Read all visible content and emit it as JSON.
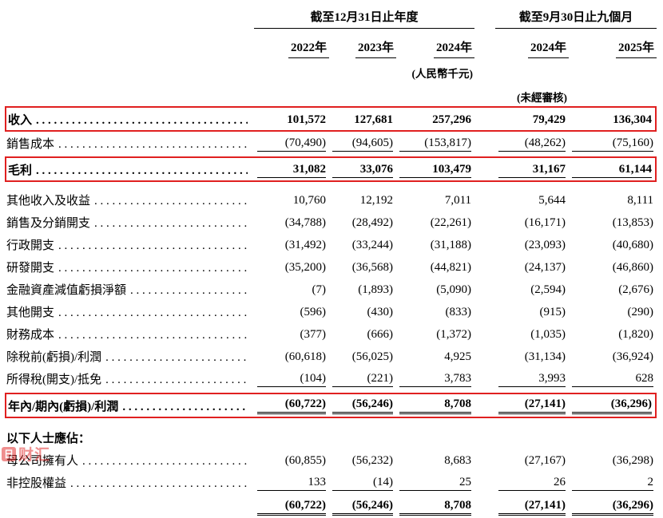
{
  "colors": {
    "box_red": "#e02020",
    "watermark_red": "#e02020"
  },
  "header": {
    "group1": "截至12月31日止年度",
    "group2": "截至9月30日止九個月",
    "years": [
      "2022年",
      "2023年",
      "2024年",
      "2024年",
      "2025年"
    ],
    "currency_note": "(人民幣千元)",
    "unaudited_note": "(未經審核)"
  },
  "table": {
    "rows": [
      {
        "label": "收入",
        "leader": true,
        "bold": true,
        "boxed": true,
        "values": [
          "101,572",
          "127,681",
          "257,296",
          "79,429",
          "136,304"
        ]
      },
      {
        "label": "銷售成本",
        "leader": true,
        "rule_bottom": "single",
        "values": [
          "(70,490)",
          "(94,605)",
          "(153,817)",
          "(48,262)",
          "(75,160)"
        ]
      },
      {
        "spacer": true,
        "height": 3
      },
      {
        "label": "毛利",
        "leader": true,
        "bold": true,
        "boxed": true,
        "rule_bottom": "single",
        "values": [
          "31,082",
          "33,076",
          "103,479",
          "31,167",
          "61,144"
        ]
      },
      {
        "spacer": true,
        "height": 8
      },
      {
        "label": "其他收入及收益",
        "leader": true,
        "values": [
          "10,760",
          "12,192",
          "7,011",
          "5,644",
          "8,111"
        ]
      },
      {
        "label": "銷售及分銷開支",
        "leader": true,
        "values": [
          "(34,788)",
          "(28,492)",
          "(22,261)",
          "(16,171)",
          "(13,853)"
        ]
      },
      {
        "label": "行政開支",
        "leader": true,
        "values": [
          "(31,492)",
          "(33,244)",
          "(31,188)",
          "(23,093)",
          "(40,680)"
        ]
      },
      {
        "label": "研發開支",
        "leader": true,
        "values": [
          "(35,200)",
          "(36,568)",
          "(44,821)",
          "(24,137)",
          "(46,860)"
        ]
      },
      {
        "label": "金融資產減值虧損淨額",
        "leader": true,
        "values": [
          "(7)",
          "(1,893)",
          "(5,090)",
          "(2,594)",
          "(2,676)"
        ]
      },
      {
        "label": "其他開支",
        "leader": true,
        "values": [
          "(596)",
          "(430)",
          "(833)",
          "(915)",
          "(290)"
        ]
      },
      {
        "label": "財務成本",
        "leader": true,
        "values": [
          "(377)",
          "(666)",
          "(1,372)",
          "(1,035)",
          "(1,820)"
        ]
      },
      {
        "label": "除稅前(虧損)/利潤",
        "leader": true,
        "values": [
          "(60,618)",
          "(56,025)",
          "4,925",
          "(31,134)",
          "(36,924)"
        ]
      },
      {
        "label": "所得稅(開支)/抵免",
        "leader": true,
        "rule_bottom": "single",
        "values": [
          "(104)",
          "(221)",
          "3,783",
          "3,993",
          "628"
        ]
      },
      {
        "spacer": true,
        "height": 4
      },
      {
        "label": "年內/期內(虧損)/利潤",
        "leader": true,
        "bold": true,
        "boxed": true,
        "rule_bottom": "double",
        "values": [
          "(60,722)",
          "(56,246)",
          "8,708",
          "(27,141)",
          "(36,296)"
        ]
      },
      {
        "spacer": true,
        "height": 10
      },
      {
        "label": "以下人士應佔：",
        "bold": true,
        "values": [
          "",
          "",
          "",
          "",
          ""
        ]
      },
      {
        "label": "母公司擁有人",
        "leader": true,
        "values": [
          "(60,855)",
          "(56,232)",
          "8,683",
          "(27,167)",
          "(36,298)"
        ]
      },
      {
        "label": "非控股權益",
        "leader": true,
        "rule_bottom": "single",
        "values": [
          "133",
          "(14)",
          "25",
          "26",
          "2"
        ]
      },
      {
        "spacer": true,
        "height": 3
      },
      {
        "label": "",
        "bold": true,
        "rule_bottom": "double",
        "values": [
          "(60,722)",
          "(56,246)",
          "8,708",
          "(27,141)",
          "(36,296)"
        ]
      }
    ]
  },
  "watermark": {
    "icon_char": "日",
    "text": "财汇"
  }
}
